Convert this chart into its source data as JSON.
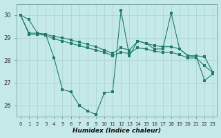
{
  "xlabel": "Humidex (Indice chaleur)",
  "background_color": "#c5e8e8",
  "grid_color": "#aed4d4",
  "line_color": "#1e7b6e",
  "xlim": [
    -0.5,
    23.5
  ],
  "ylim": [
    25.5,
    30.5
  ],
  "yticks": [
    26,
    27,
    28,
    29,
    30
  ],
  "xticks": [
    0,
    1,
    2,
    3,
    4,
    5,
    6,
    7,
    8,
    9,
    10,
    11,
    12,
    13,
    14,
    15,
    16,
    17,
    18,
    19,
    20,
    21,
    22,
    23
  ],
  "line1_x": [
    0,
    1,
    2,
    3,
    4,
    5,
    6,
    7,
    8,
    9,
    10,
    11,
    12,
    13,
    14,
    15,
    16,
    17,
    18,
    19,
    20,
    21,
    22,
    23
  ],
  "line1_y": [
    30.0,
    29.8,
    29.2,
    29.15,
    28.1,
    26.7,
    26.6,
    26.0,
    25.75,
    25.6,
    26.55,
    26.6,
    30.2,
    28.2,
    28.85,
    28.75,
    28.5,
    28.5,
    30.1,
    28.5,
    28.2,
    28.15,
    27.1,
    27.4
  ],
  "line2_x": [
    0,
    1,
    2,
    3,
    4,
    5,
    6,
    7,
    8,
    9,
    10,
    11,
    12,
    13,
    14,
    15,
    16,
    17,
    18,
    19,
    20,
    21,
    22,
    23
  ],
  "line2_y": [
    30.0,
    29.2,
    29.2,
    29.15,
    29.05,
    29.0,
    28.9,
    28.8,
    28.7,
    28.6,
    28.45,
    28.3,
    28.55,
    28.45,
    28.85,
    28.75,
    28.65,
    28.6,
    28.6,
    28.5,
    28.2,
    28.2,
    28.15,
    27.45
  ],
  "line3_x": [
    0,
    1,
    2,
    3,
    4,
    5,
    6,
    7,
    8,
    9,
    10,
    11,
    12,
    13,
    14,
    15,
    16,
    17,
    18,
    19,
    20,
    21,
    22,
    23
  ],
  "line3_y": [
    30.0,
    29.15,
    29.15,
    29.1,
    28.95,
    28.85,
    28.75,
    28.65,
    28.55,
    28.45,
    28.35,
    28.2,
    28.35,
    28.3,
    28.55,
    28.5,
    28.4,
    28.35,
    28.35,
    28.25,
    28.1,
    28.1,
    27.75,
    27.45
  ]
}
